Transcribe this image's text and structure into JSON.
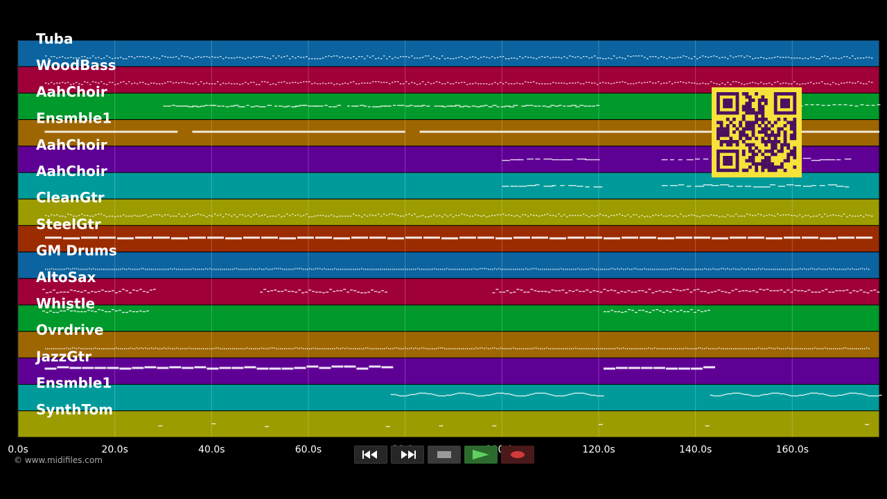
{
  "timeline": {
    "axis_ticks": [
      "0.0s",
      "20.0s",
      "40.0s",
      "60.0s",
      "80.0s",
      "100.0s",
      "120.0s",
      "140.0s",
      "160.0s"
    ],
    "tick_seconds": [
      0,
      20,
      40,
      60,
      80,
      100,
      120,
      140,
      160
    ],
    "duration_seconds": 178
  },
  "tracks": [
    {
      "name": "Tuba",
      "color": "#0b64a0",
      "style": "dots"
    },
    {
      "name": "WoodBass",
      "color": "#a0003a",
      "style": "dots"
    },
    {
      "name": "AahChoir",
      "color": "#00992b",
      "style": "dashes"
    },
    {
      "name": "Ensmble1",
      "color": "#9e6600",
      "style": "long"
    },
    {
      "name": "AahChoir",
      "color": "#5f0095",
      "style": "sparse"
    },
    {
      "name": "AahChoir",
      "color": "#009a9a",
      "style": "sparse"
    },
    {
      "name": "CleanGtr",
      "color": "#9c9c00",
      "style": "dots"
    },
    {
      "name": "SteelGtr",
      "color": "#9b2c00",
      "style": "bars"
    },
    {
      "name": "GM Drums",
      "color": "#0b64a0",
      "style": "fine"
    },
    {
      "name": "AltoSax",
      "color": "#a0003a",
      "style": "phrase"
    },
    {
      "name": "Whistle",
      "color": "#00992b",
      "style": "phrase2"
    },
    {
      "name": "Ovrdrive",
      "color": "#9e6600",
      "style": "fine"
    },
    {
      "name": "JazzGtr",
      "color": "#5f0095",
      "style": "bars2"
    },
    {
      "name": "Ensmble1",
      "color": "#009a9a",
      "style": "waves"
    },
    {
      "name": "SynthTom",
      "color": "#9c9c00",
      "style": "specks"
    }
  ],
  "qr_code": {
    "color": "#f7e23a",
    "module_color": "#4a1060"
  },
  "footer": {
    "copyright": "© www.midifiles.com"
  },
  "transport": {
    "rewind": "rewind-icon",
    "fast_forward": "fast-forward-icon",
    "stop": "stop-icon",
    "play": "play-icon",
    "record": "record-icon"
  }
}
